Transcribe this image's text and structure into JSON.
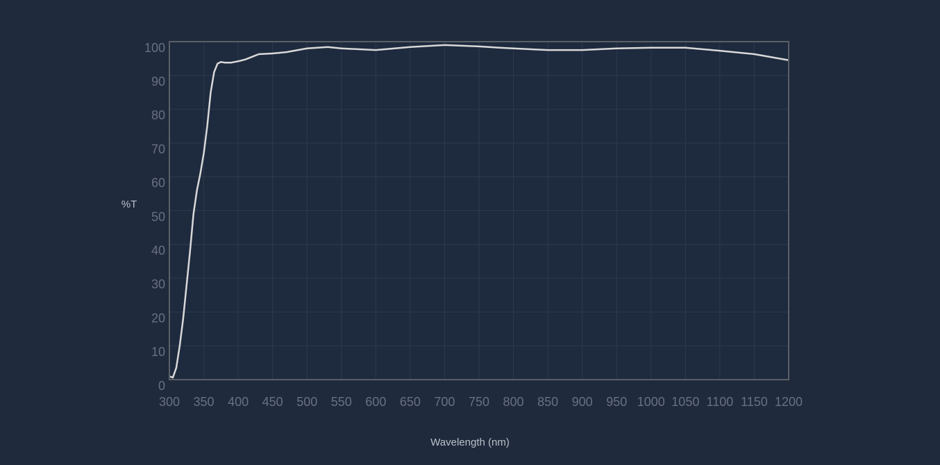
{
  "chart_data": {
    "type": "line",
    "xlabel": "Wavelength (nm)",
    "ylabel": "%T",
    "x": [
      300,
      305,
      310,
      315,
      320,
      325,
      330,
      335,
      340,
      345,
      350,
      355,
      360,
      365,
      370,
      375,
      380,
      390,
      400,
      410,
      420,
      430,
      450,
      470,
      500,
      530,
      550,
      600,
      650,
      700,
      750,
      780,
      800,
      850,
      900,
      950,
      1000,
      1050,
      1100,
      1150,
      1200
    ],
    "series": [
      {
        "name": "%T",
        "color": "#d9d9d9",
        "values": [
          1,
          0.6,
          3.5,
          10,
          18,
          28,
          38,
          49,
          56,
          61,
          67,
          75,
          85,
          91,
          93.5,
          94,
          93.8,
          93.8,
          94.2,
          94.7,
          95.5,
          96.3,
          96.5,
          96.9,
          98,
          98.4,
          98,
          97.5,
          98.4,
          99,
          98.6,
          98.2,
          98,
          97.5,
          97.5,
          98,
          98.2,
          98.2,
          97.3,
          96.3,
          94.5
        ]
      }
    ],
    "xlim": [
      300,
      1200
    ],
    "ylim": [
      0,
      100
    ],
    "xticks": [
      300,
      350,
      400,
      450,
      500,
      550,
      600,
      650,
      700,
      750,
      800,
      850,
      900,
      950,
      1000,
      1050,
      1100,
      1150,
      1200
    ],
    "yticks": [
      0,
      10,
      20,
      30,
      40,
      50,
      60,
      70,
      80,
      90,
      100
    ],
    "grid": true
  }
}
